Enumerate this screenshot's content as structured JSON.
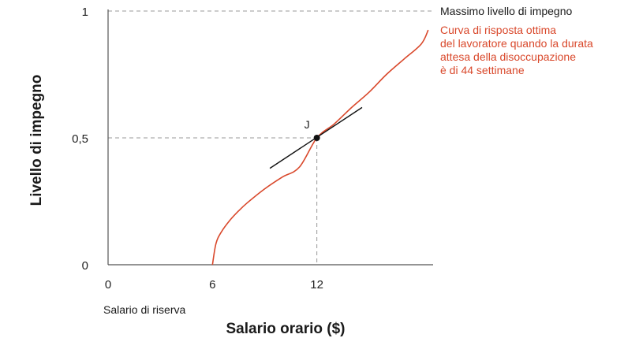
{
  "chart_data": {
    "type": "line",
    "title": "",
    "xlabel": "Salario orario ($)",
    "ylabel": "Livello di impegno",
    "xlim": [
      0,
      18.5
    ],
    "ylim": [
      0,
      1
    ],
    "x_ticks": [
      "0",
      "6",
      "12"
    ],
    "y_ticks": [
      "0",
      "0,5",
      "1"
    ],
    "grid": false,
    "colors": {
      "curve": "#d9482b",
      "axes": "#555555",
      "guides": "#999999",
      "text": "#1a1a1a"
    },
    "series": [
      {
        "name": "Curva di risposta ottima del lavoratore quando la durata attesa della disoccupazione è di 44 settimane",
        "x": [
          6,
          6.2,
          6.5,
          7,
          7.5,
          8,
          9,
          10,
          11,
          12,
          13,
          14,
          15,
          16,
          17,
          18,
          18.4
        ],
        "y": [
          0,
          0.083,
          0.128,
          0.175,
          0.212,
          0.244,
          0.299,
          0.345,
          0.385,
          0.5,
          0.555,
          0.62,
          0.68,
          0.75,
          0.81,
          0.87,
          0.925
        ]
      }
    ],
    "point": {
      "label": "J",
      "x": 12,
      "y": 0.5
    },
    "tangent": {
      "x": [
        9.3,
        14.6
      ],
      "y": [
        0.38,
        0.62
      ]
    },
    "annotations": {
      "max_effort_label": "Massimo livello di impegno",
      "reservation_wage_label": "Salario di riserva",
      "curve_label_lines": [
        "Curva di risposta ottima",
        "del lavoratore quando la durata",
        "attesa della disoccupazione",
        "è di 44 settimane"
      ]
    }
  }
}
